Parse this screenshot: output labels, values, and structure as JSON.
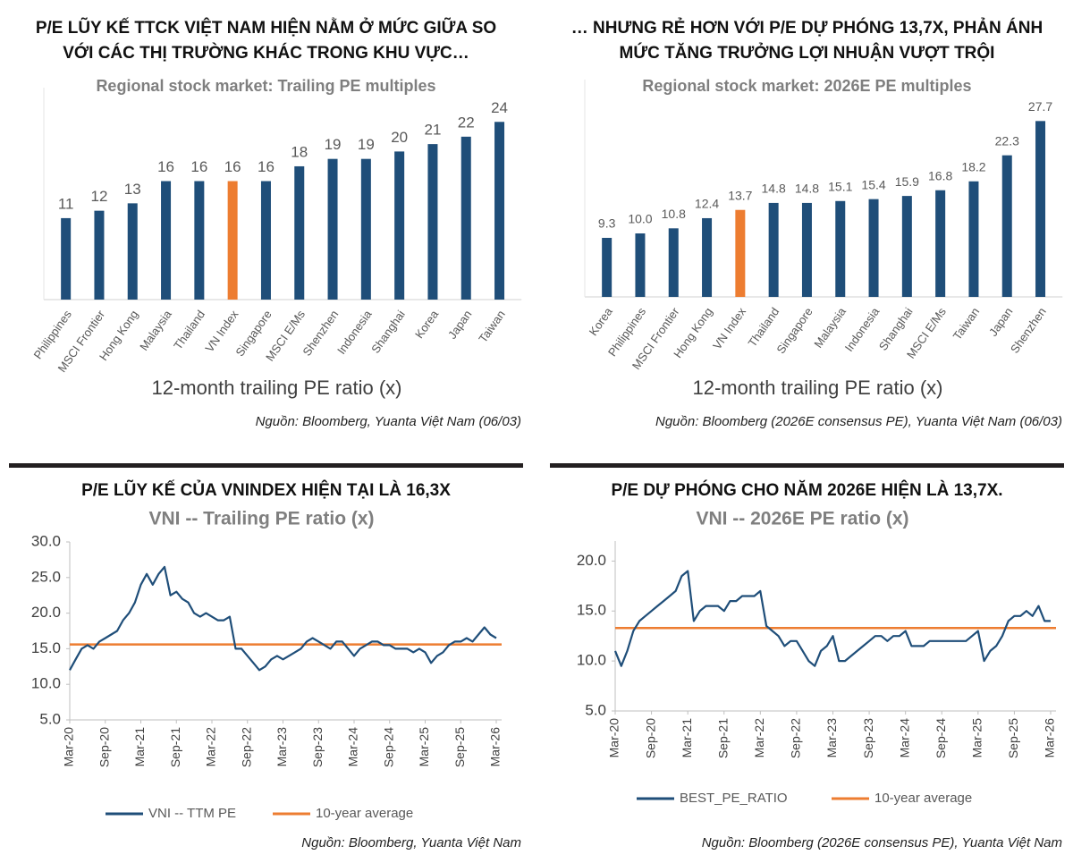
{
  "chart_data": [
    {
      "type": "bar",
      "heading": [
        "P/E LŨY KẾ TTCK VIỆT NAM HIỆN NẰM Ở MỨC GIỮA SO",
        "VỚI CÁC THỊ TRƯỜNG KHÁC TRONG KHU VỰC…"
      ],
      "title": "Regional stock market: Trailing PE multiples",
      "xlabel": "12-month trailing PE ratio (x)",
      "source": "Nguồn: Bloomberg, Yuanta Việt Nam (06/03)",
      "categories": [
        "Philippines",
        "MSCI Frontier",
        "Hong Kong",
        "Malaysia",
        "Thailand",
        "VN Index",
        "Singapore",
        "MSCI E/Ms",
        "Shenzhen",
        "Indonesia",
        "Shanghai",
        "Korea",
        "Japan",
        "Taiwan"
      ],
      "values": [
        11,
        12,
        13,
        16,
        16,
        16,
        16,
        18,
        19,
        19,
        20,
        21,
        22,
        24
      ],
      "colors": [
        "#1f4e79",
        "#1f4e79",
        "#1f4e79",
        "#1f4e79",
        "#1f4e79",
        "#ed7d31",
        "#1f4e79",
        "#1f4e79",
        "#1f4e79",
        "#1f4e79",
        "#1f4e79",
        "#1f4e79",
        "#1f4e79",
        "#1f4e79"
      ],
      "ylim": [
        0,
        25
      ]
    },
    {
      "type": "bar",
      "heading": [
        "… NHƯNG RẺ HƠN VỚI P/E DỰ PHÓNG 13,7X, PHẢN ÁNH",
        "MỨC TĂNG TRƯỞNG LỢI NHUẬN VƯỢT TRỘI"
      ],
      "title": "Regional stock market: 2026E PE multiples",
      "xlabel": "12-month trailing PE ratio (x)",
      "source": "Nguồn: Bloomberg (2026E consensus PE), Yuanta Việt Nam (06/03)",
      "categories": [
        "Korea",
        "Philippines",
        "MSCI Frontier",
        "Hong Kong",
        "VN Index",
        "Thailand",
        "Singapore",
        "Malaysia",
        "Indonesia",
        "Shanghai",
        "MSCI E/Ms",
        "Taiwan",
        "Japan",
        "Shenzhen"
      ],
      "values": [
        9.3,
        10,
        10.8,
        12.4,
        13.7,
        14.8,
        14.8,
        15.1,
        15.4,
        15.9,
        16.8,
        18.2,
        22.3,
        27.7
      ],
      "value_labels": [
        "9.3",
        "10.0",
        "10.8",
        "12.4",
        "13.7",
        "14.8",
        "14.8",
        "15.1",
        "15.4",
        "15.9",
        "16.8",
        "18.2",
        "22.3",
        "27.7"
      ],
      "colors": [
        "#1f4e79",
        "#1f4e79",
        "#1f4e79",
        "#1f4e79",
        "#ed7d31",
        "#1f4e79",
        "#1f4e79",
        "#1f4e79",
        "#1f4e79",
        "#1f4e79",
        "#1f4e79",
        "#1f4e79",
        "#1f4e79",
        "#1f4e79"
      ],
      "ylim": [
        0,
        30
      ]
    },
    {
      "type": "line",
      "heading": [
        "P/E LŨY KẾ CỦA VNINDEX HIỆN TẠI LÀ 16,3X"
      ],
      "title": "VNI -- Trailing PE ratio (x)",
      "source": "Nguồn: Bloomberg, Yuanta Việt Nam",
      "x": [
        "Mar-20",
        "Apr-20",
        "May-20",
        "Jun-20",
        "Jul-20",
        "Aug-20",
        "Sep-20",
        "Oct-20",
        "Nov-20",
        "Dec-20",
        "Jan-21",
        "Feb-21",
        "Mar-21",
        "Apr-21",
        "May-21",
        "Jun-21",
        "Jul-21",
        "Aug-21",
        "Sep-21",
        "Oct-21",
        "Nov-21",
        "Dec-21",
        "Jan-22",
        "Feb-22",
        "Mar-22",
        "Apr-22",
        "May-22",
        "Jun-22",
        "Jul-22",
        "Aug-22",
        "Sep-22",
        "Oct-22",
        "Nov-22",
        "Dec-22",
        "Jan-23",
        "Feb-23",
        "Mar-23",
        "Apr-23",
        "May-23",
        "Jun-23",
        "Jul-23",
        "Aug-23",
        "Sep-23",
        "Oct-23",
        "Nov-23",
        "Dec-23",
        "Jan-24",
        "Feb-24",
        "Mar-24",
        "Apr-24",
        "May-24",
        "Jun-24",
        "Jul-24",
        "Aug-24",
        "Sep-24",
        "Oct-24",
        "Nov-24",
        "Dec-24",
        "Jan-25",
        "Feb-25",
        "Mar-25",
        "Apr-25",
        "May-25",
        "Jun-25",
        "Jul-25",
        "Aug-25",
        "Sep-25",
        "Oct-25",
        "Nov-25",
        "Dec-25",
        "Jan-26",
        "Feb-26",
        "Mar-26"
      ],
      "series": [
        {
          "name": "VNI -- TTM PE",
          "color": "#1f4e79",
          "values": [
            12,
            13.5,
            15,
            15.5,
            15,
            16,
            16.5,
            17,
            17.5,
            19,
            20,
            21.5,
            24,
            25.5,
            24,
            25.5,
            26.5,
            22.5,
            23,
            22,
            21.5,
            20,
            19.5,
            20,
            19.5,
            19,
            19,
            19.5,
            15,
            15,
            14,
            13,
            12,
            12.5,
            13.5,
            14,
            13.5,
            14,
            14.5,
            15,
            16,
            16.5,
            16,
            15.5,
            15,
            16,
            16,
            15,
            14,
            15,
            15.5,
            16,
            16,
            15.5,
            15.5,
            15,
            15,
            15,
            14.5,
            15,
            14.5,
            13,
            14,
            14.5,
            15.5,
            16,
            16,
            16.5,
            16,
            17,
            18,
            17,
            16.5
          ]
        }
      ],
      "hlines": [
        {
          "name": "10-year average",
          "color": "#ed7d31",
          "value": 15.6
        }
      ],
      "xticks": [
        "Mar-20",
        "Sep-20",
        "Mar-21",
        "Sep-21",
        "Mar-22",
        "Sep-22",
        "Mar-23",
        "Sep-23",
        "Mar-24",
        "Sep-24",
        "Mar-25",
        "Sep-25",
        "Mar-26"
      ],
      "ylim": [
        5,
        30
      ],
      "yticks": [
        {
          "value": 5,
          "label": "5.0"
        },
        {
          "value": 10,
          "label": "10.0"
        },
        {
          "value": 15,
          "label": "15.0"
        },
        {
          "value": 20,
          "label": "20.0"
        },
        {
          "value": 25,
          "label": "25.0"
        },
        {
          "value": 30,
          "label": "30.0"
        }
      ]
    },
    {
      "type": "line",
      "heading": [
        "P/E DỰ PHÓNG CHO NĂM 2026E HIỆN LÀ 13,7X."
      ],
      "title": "VNI -- 2026E PE ratio (x)",
      "source": "Nguồn: Bloomberg (2026E consensus PE), Yuanta Việt Nam",
      "x": [
        "Mar-20",
        "Apr-20",
        "May-20",
        "Jun-20",
        "Jul-20",
        "Aug-20",
        "Sep-20",
        "Oct-20",
        "Nov-20",
        "Dec-20",
        "Jan-21",
        "Feb-21",
        "Mar-21",
        "Apr-21",
        "May-21",
        "Jun-21",
        "Jul-21",
        "Aug-21",
        "Sep-21",
        "Oct-21",
        "Nov-21",
        "Dec-21",
        "Jan-22",
        "Feb-22",
        "Mar-22",
        "Apr-22",
        "May-22",
        "Jun-22",
        "Jul-22",
        "Aug-22",
        "Sep-22",
        "Oct-22",
        "Nov-22",
        "Dec-22",
        "Jan-23",
        "Feb-23",
        "Mar-23",
        "Apr-23",
        "May-23",
        "Jun-23",
        "Jul-23",
        "Aug-23",
        "Sep-23",
        "Oct-23",
        "Nov-23",
        "Dec-23",
        "Jan-24",
        "Feb-24",
        "Mar-24",
        "Apr-24",
        "May-24",
        "Jun-24",
        "Jul-24",
        "Aug-24",
        "Sep-24",
        "Oct-24",
        "Nov-24",
        "Dec-24",
        "Jan-25",
        "Feb-25",
        "Mar-25",
        "Apr-25",
        "May-25",
        "Jun-25",
        "Jul-25",
        "Aug-25",
        "Sep-25",
        "Oct-25",
        "Nov-25",
        "Dec-25",
        "Jan-26",
        "Feb-26",
        "Mar-26"
      ],
      "series": [
        {
          "name": "BEST_PE_RATIO",
          "color": "#1f4e79",
          "values": [
            11,
            9.5,
            11,
            13,
            14,
            14.5,
            15,
            15.5,
            16,
            16.5,
            17,
            18.5,
            19,
            14,
            15,
            15.5,
            15.5,
            15.5,
            15,
            16,
            16,
            16.5,
            16.5,
            16.5,
            17,
            13.5,
            13,
            12.5,
            11.5,
            12,
            12,
            11,
            10,
            9.5,
            11,
            11.5,
            12.5,
            10,
            10,
            10.5,
            11,
            11.5,
            12,
            12.5,
            12.5,
            12,
            12.5,
            12.5,
            13,
            11.5,
            11.5,
            11.5,
            12,
            12,
            12,
            12,
            12,
            12,
            12,
            12.5,
            13,
            10,
            11,
            11.5,
            12.5,
            14,
            14.5,
            14.5,
            15,
            14.5,
            15.5,
            14,
            14
          ]
        }
      ],
      "hlines": [
        {
          "name": "10-year average",
          "color": "#ed7d31",
          "value": 13.3
        }
      ],
      "xticks": [
        "Mar-20",
        "Sep-20",
        "Mar-21",
        "Sep-21",
        "Mar-22",
        "Sep-22",
        "Mar-23",
        "Sep-23",
        "Mar-24",
        "Sep-24",
        "Mar-25",
        "Sep-25",
        "Mar-26"
      ],
      "ylim": [
        5,
        22
      ],
      "yticks": [
        {
          "value": 5,
          "label": "5.0"
        },
        {
          "value": 10,
          "label": "10.0"
        },
        {
          "value": 15,
          "label": "15.0"
        },
        {
          "value": 20,
          "label": "20.0"
        }
      ]
    }
  ]
}
